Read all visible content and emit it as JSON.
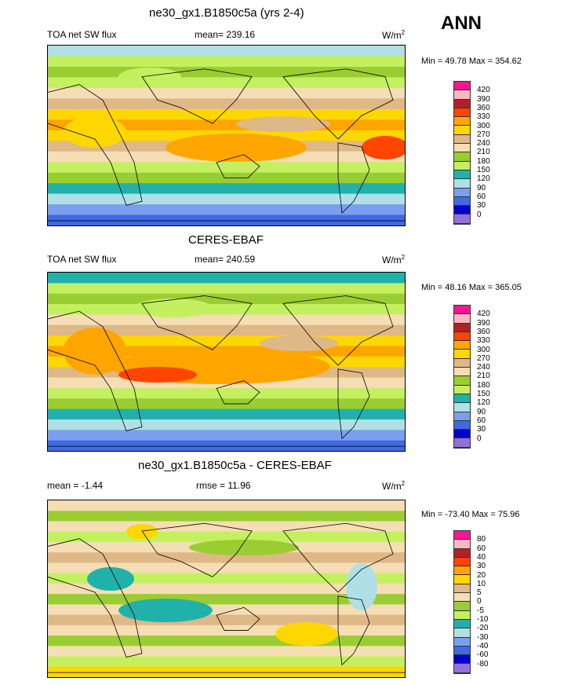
{
  "season": "ANN",
  "palette": [
    "#ff1493",
    "#ffb6c1",
    "#b22222",
    "#ff4500",
    "#ffa500",
    "#ffd700",
    "#deb887",
    "#f5deb3",
    "#9acd32",
    "#c4f060",
    "#20b2aa",
    "#b0e0e6",
    "#7b9ff0",
    "#4169e1",
    "#0000cd",
    "#9370db"
  ],
  "panels": [
    {
      "title": "ne30_gx1.B1850c5a (yrs 2-4)",
      "left": "TOA net SW flux",
      "center": "mean= 239.16",
      "units": "W/m",
      "units_sup": "2",
      "minmax": "Min =  49.78 Max = 354.62",
      "levels": [
        "420",
        "390",
        "360",
        "330",
        "300",
        "270",
        "240",
        "210",
        "180",
        "150",
        "120",
        "90",
        "60",
        "30",
        "0"
      ]
    },
    {
      "title": "CERES-EBAF",
      "left": "TOA net SW flux",
      "center": "mean= 240.59",
      "units": "W/m",
      "units_sup": "2",
      "minmax": "Min =  48.16 Max = 365.05",
      "levels": [
        "420",
        "390",
        "360",
        "330",
        "300",
        "270",
        "240",
        "210",
        "180",
        "150",
        "120",
        "90",
        "60",
        "30",
        "0"
      ]
    },
    {
      "title": "ne30_gx1.B1850c5a - CERES-EBAF",
      "left": "mean =  -1.44",
      "center": "rmse =  11.96",
      "units": "W/m",
      "units_sup": "2",
      "minmax": "Min = -73.40 Max =  75.96",
      "levels": [
        "80",
        "60",
        "40",
        "30",
        "20",
        "10",
        "5",
        "0",
        "-5",
        "-10",
        "-20",
        "-30",
        "-40",
        "-60",
        "-80"
      ]
    }
  ]
}
